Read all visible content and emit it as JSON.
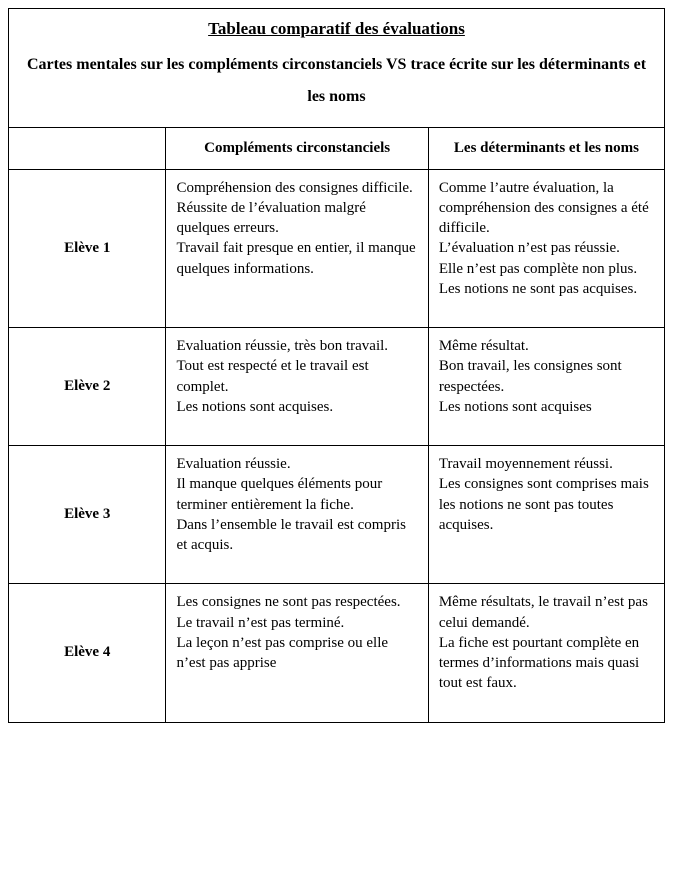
{
  "title": {
    "line1": "Tableau comparatif des évaluations",
    "line2": "Cartes mentales sur les compléments circonstanciels VS trace écrite sur les déterminants et les noms"
  },
  "columns": {
    "c1": "",
    "c2": "Compléments circonstanciels",
    "c3": "Les déterminants et les noms"
  },
  "rows": [
    {
      "label": "Elève 1",
      "c2": "Compréhension des consignes difficile.\nRéussite de l’évaluation malgré quelques erreurs.\nTravail fait presque en entier, il manque quelques informations.",
      "c3": "Comme l’autre évaluation, la compréhension des consignes a été difficile.\nL’évaluation n’est pas réussie.\nElle n’est pas complète non plus.\nLes notions ne sont pas acquises."
    },
    {
      "label": "Elève 2",
      "c2": "Evaluation réussie, très bon travail.\nTout est respecté et le travail est complet.\nLes notions sont acquises.",
      "c3": "Même résultat.\nBon travail, les consignes sont respectées.\nLes notions sont acquises"
    },
    {
      "label": "Elève 3",
      "c2": "Evaluation réussie.\nIl manque quelques éléments pour terminer entièrement la fiche.\nDans l’ensemble le travail est compris et acquis.",
      "c3": "Travail moyennement réussi.\nLes consignes sont comprises mais les notions ne sont pas toutes acquises."
    },
    {
      "label": "Elève 4",
      "c2": "Les consignes ne sont pas respectées.\nLe travail n’est pas terminé.\nLa leçon n’est pas comprise ou elle n’est pas apprise",
      "c3": "Même résultats, le travail n’est pas celui demandé.\nLa fiche est pourtant complète en termes d’informations mais quasi tout est faux."
    }
  ]
}
